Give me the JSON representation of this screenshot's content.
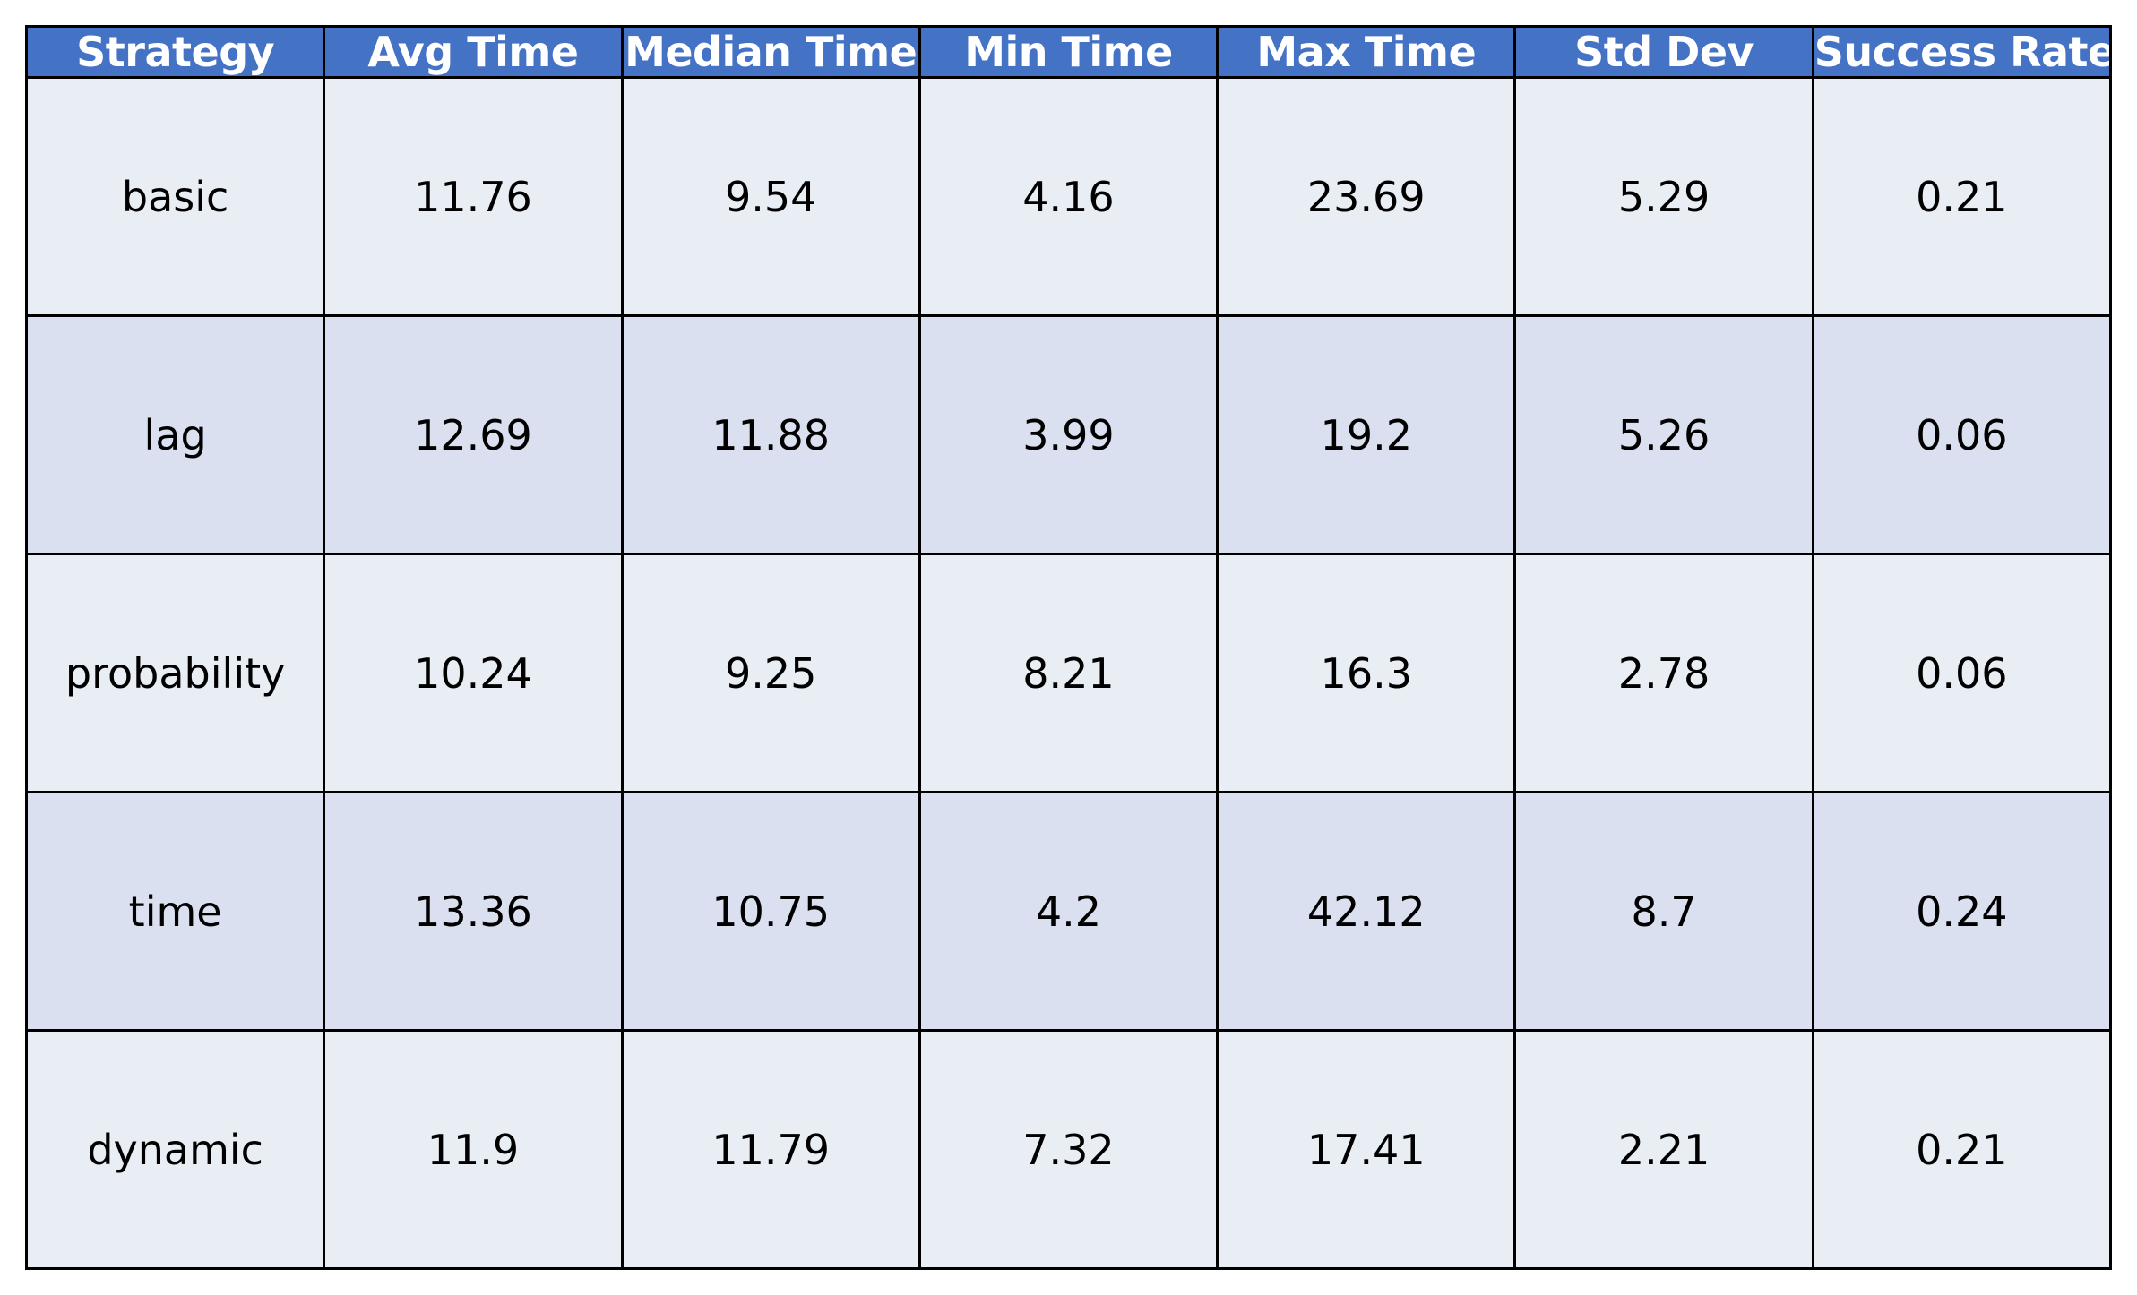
{
  "colors": {
    "header_bg": "#4472c4",
    "header_text": "#ffffff",
    "row_light": "#e9edf4",
    "row_dark": "#dae0f0",
    "border": "#000000"
  },
  "chart_data": {
    "type": "table",
    "columns": [
      "Strategy",
      "Avg Time",
      "Median Time",
      "Min Time",
      "Max Time",
      "Std Dev",
      "Success Rate"
    ],
    "rows": [
      [
        "basic",
        "11.76",
        "9.54",
        "4.16",
        "23.69",
        "5.29",
        "0.21"
      ],
      [
        "lag",
        "12.69",
        "11.88",
        "3.99",
        "19.2",
        "5.26",
        "0.06"
      ],
      [
        "probability",
        "10.24",
        "9.25",
        "8.21",
        "16.3",
        "2.78",
        "0.06"
      ],
      [
        "time",
        "13.36",
        "10.75",
        "4.2",
        "42.12",
        "8.7",
        "0.24"
      ],
      [
        "dynamic",
        "11.9",
        "11.79",
        "7.32",
        "17.41",
        "2.21",
        "0.21"
      ]
    ]
  }
}
